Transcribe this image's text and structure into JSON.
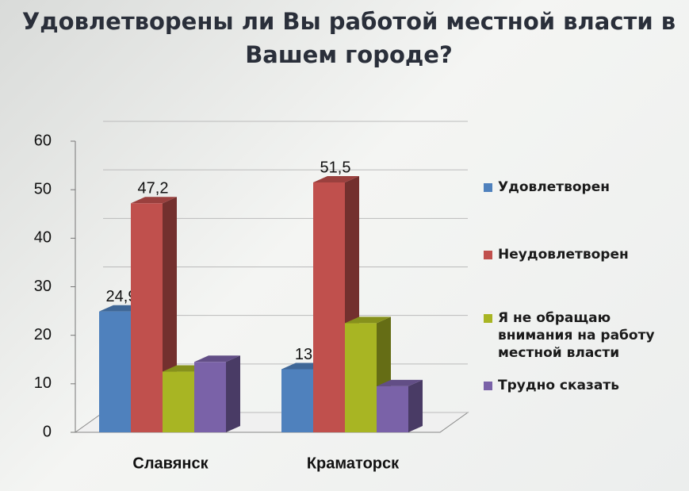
{
  "chart_data": {
    "type": "bar3d",
    "title": "Удовлетворены ли Вы работой местной власти в Вашем городе?",
    "categories": [
      "Славянск",
      "Краматорск"
    ],
    "series": [
      {
        "name": "Удовлетворен",
        "color": "#4f81bd",
        "values": [
          24.9,
          13
        ],
        "value_labels": [
          "24,9",
          "13"
        ]
      },
      {
        "name": "Неудовлетворен",
        "color": "#c0504d",
        "values": [
          47.2,
          51.5
        ],
        "value_labels": [
          "47,2",
          "51,5"
        ]
      },
      {
        "name": "Я не обращаю внимания на работу местной власти",
        "color": "#a8b523",
        "values": [
          12.5,
          22.5
        ]
      },
      {
        "name": "Трудно сказать",
        "color": "#7a62a8",
        "values": [
          14.5,
          9.5
        ]
      }
    ],
    "ylim": [
      0,
      60
    ],
    "yticks": [
      0,
      10,
      20,
      30,
      40,
      50,
      60
    ],
    "grid": true,
    "legend": "right"
  }
}
